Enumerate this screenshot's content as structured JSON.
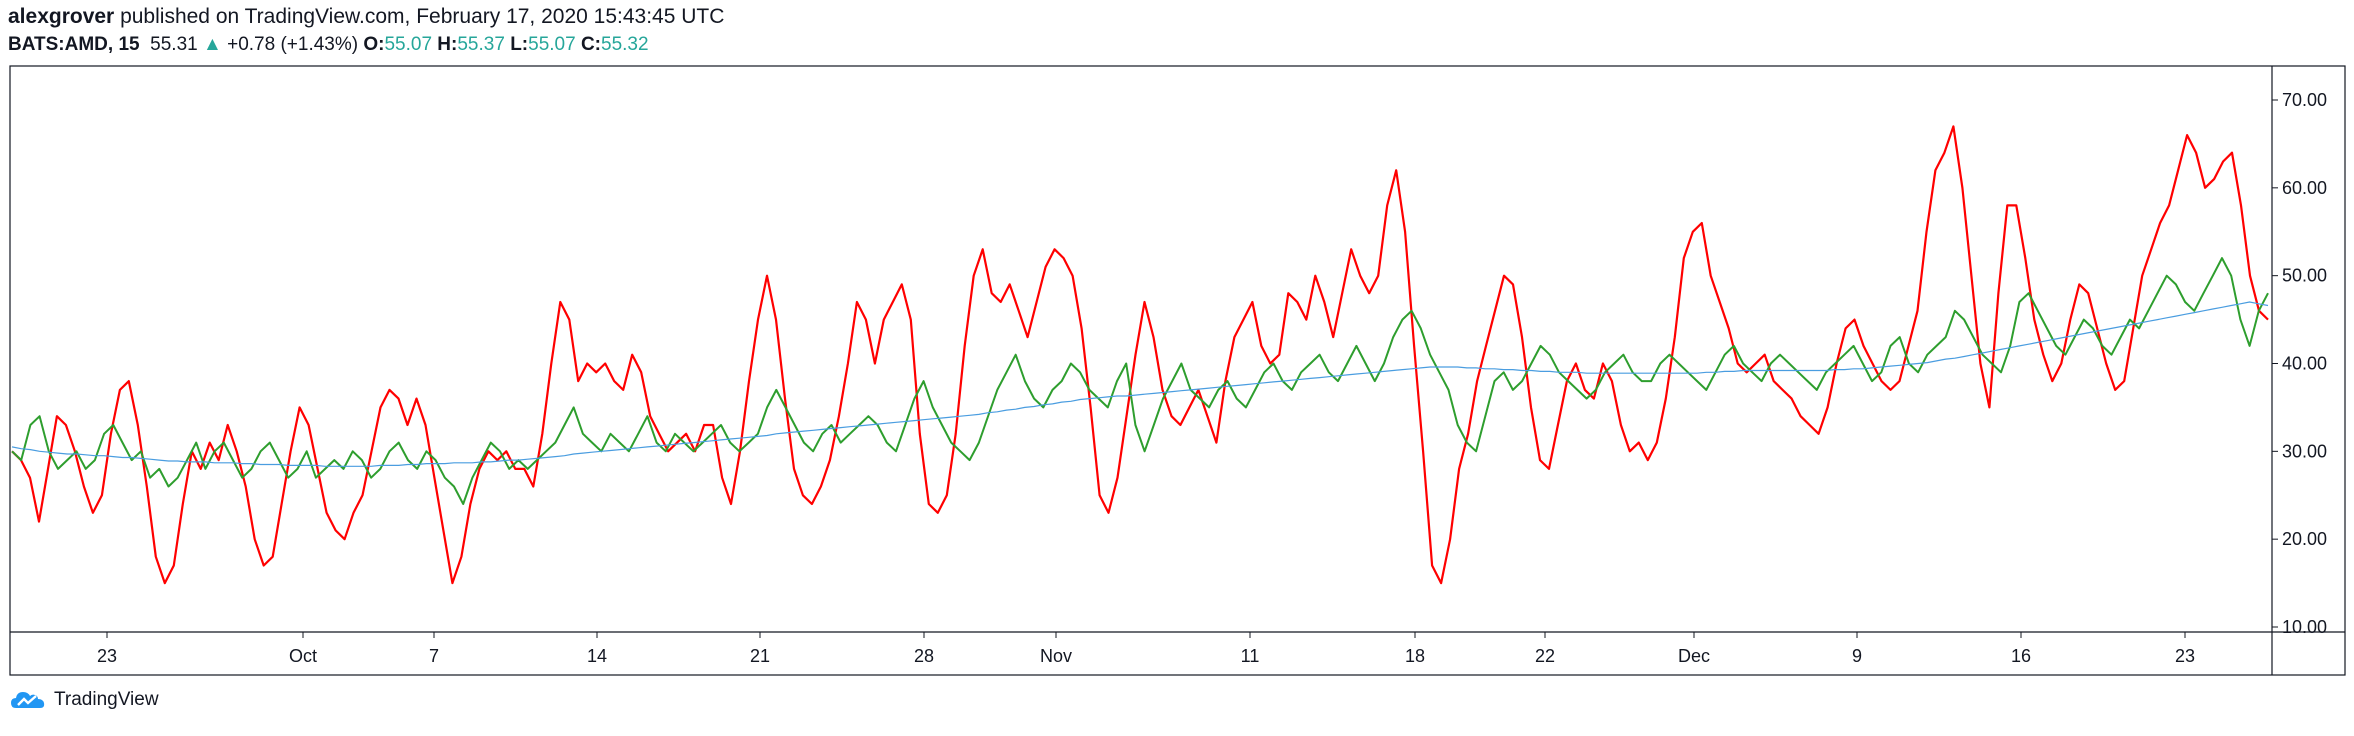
{
  "header": {
    "author": "alexgrover",
    "published": "published on TradingView.com, February 17, 2020 15:43:45 UTC",
    "symbol": "BATS:AMD, 15",
    "last": "55.31",
    "change": "+0.78 (+1.43%)",
    "o_label": "O:",
    "o_val": "55.07",
    "h_label": "H:",
    "h_val": "55.37",
    "l_label": "L:",
    "l_val": "55.07",
    "c_label": "C:",
    "c_val": "55.32"
  },
  "footer": {
    "brand": "TradingView",
    "logo_icon": "tradingview-cloud-icon"
  },
  "colors": {
    "red": "#ff0000",
    "green": "#2e9e2e",
    "blue": "#4a9de0",
    "axis": "#131722",
    "up": "#26a69a"
  },
  "chart_data": {
    "type": "line",
    "ylim": [
      10,
      70
    ],
    "yticks": [
      10,
      20,
      30,
      40,
      50,
      60,
      70
    ],
    "ytick_labels": [
      "10.00",
      "20.00",
      "30.00",
      "40.00",
      "50.00",
      "60.00",
      "70.00"
    ],
    "xticks": [
      "23",
      "Oct",
      "7",
      "14",
      "21",
      "28",
      "Nov",
      "11",
      "18",
      "22",
      "Dec",
      "9",
      "16",
      "23"
    ],
    "grid": false,
    "series": [
      {
        "color": "red",
        "width": 2.2,
        "values": [
          30,
          29,
          27,
          22,
          28,
          34,
          33,
          30,
          26,
          23,
          25,
          32,
          37,
          38,
          33,
          26,
          18,
          15,
          17,
          24,
          30,
          28,
          31,
          29,
          33,
          30,
          26,
          20,
          17,
          18,
          24,
          30,
          35,
          33,
          28,
          23,
          21,
          20,
          23,
          25,
          30,
          35,
          37,
          36,
          33,
          36,
          33,
          27,
          21,
          15,
          18,
          24,
          28,
          30,
          29,
          30,
          28,
          28,
          26,
          32,
          40,
          47,
          45,
          38,
          40,
          39,
          40,
          38,
          37,
          41,
          39,
          34,
          32,
          30,
          31,
          32,
          30,
          33,
          33,
          27,
          24,
          30,
          38,
          45,
          50,
          45,
          36,
          28,
          25,
          24,
          26,
          29,
          34,
          40,
          47,
          45,
          40,
          45,
          47,
          49,
          45,
          32,
          24,
          23,
          25,
          32,
          42,
          50,
          53,
          48,
          47,
          49,
          46,
          43,
          47,
          51,
          53,
          52,
          50,
          44,
          35,
          25,
          23,
          27,
          34,
          41,
          47,
          43,
          37,
          34,
          33,
          35,
          37,
          34,
          31,
          38,
          43,
          45,
          47,
          42,
          40,
          41,
          48,
          47,
          45,
          50,
          47,
          43,
          48,
          53,
          50,
          48,
          50,
          58,
          62,
          55,
          42,
          30,
          17,
          15,
          20,
          28,
          32,
          38,
          42,
          46,
          50,
          49,
          43,
          35,
          29,
          28,
          33,
          38,
          40,
          37,
          36,
          40,
          38,
          33,
          30,
          31,
          29,
          31,
          36,
          43,
          52,
          55,
          56,
          50,
          47,
          44,
          40,
          39,
          40,
          41,
          38,
          37,
          36,
          34,
          33,
          32,
          35,
          40,
          44,
          45,
          42,
          40,
          38,
          37,
          38,
          42,
          46,
          55,
          62,
          64,
          67,
          60,
          50,
          40,
          35,
          48,
          58,
          58,
          52,
          45,
          41,
          38,
          40,
          45,
          49,
          48,
          44,
          40,
          37,
          38,
          44,
          50,
          53,
          56,
          58,
          62,
          66,
          64,
          60,
          61,
          63,
          64,
          58,
          50,
          46,
          45
        ]
      },
      {
        "color": "green",
        "width": 2,
        "values": [
          30,
          29,
          33,
          34,
          30,
          28,
          29,
          30,
          28,
          29,
          32,
          33,
          31,
          29,
          30,
          27,
          28,
          26,
          27,
          29,
          31,
          28,
          30,
          31,
          29,
          27,
          28,
          30,
          31,
          29,
          27,
          28,
          30,
          27,
          28,
          29,
          28,
          30,
          29,
          27,
          28,
          30,
          31,
          29,
          28,
          30,
          29,
          27,
          26,
          24,
          27,
          29,
          31,
          30,
          28,
          29,
          28,
          29,
          30,
          31,
          33,
          35,
          32,
          31,
          30,
          32,
          31,
          30,
          32,
          34,
          31,
          30,
          32,
          31,
          30,
          31,
          32,
          33,
          31,
          30,
          31,
          32,
          35,
          37,
          35,
          33,
          31,
          30,
          32,
          33,
          31,
          32,
          33,
          34,
          33,
          31,
          30,
          33,
          36,
          38,
          35,
          33,
          31,
          30,
          29,
          31,
          34,
          37,
          39,
          41,
          38,
          36,
          35,
          37,
          38,
          40,
          39,
          37,
          36,
          35,
          38,
          40,
          33,
          30,
          33,
          36,
          38,
          40,
          37,
          36,
          35,
          37,
          38,
          36,
          35,
          37,
          39,
          40,
          38,
          37,
          39,
          40,
          41,
          39,
          38,
          40,
          42,
          40,
          38,
          40,
          43,
          45,
          46,
          44,
          41,
          39,
          37,
          33,
          31,
          30,
          34,
          38,
          39,
          37,
          38,
          40,
          42,
          41,
          39,
          38,
          37,
          36,
          37,
          39,
          40,
          41,
          39,
          38,
          38,
          40,
          41,
          40,
          39,
          38,
          37,
          39,
          41,
          42,
          40,
          39,
          38,
          40,
          41,
          40,
          39,
          38,
          37,
          39,
          40,
          41,
          42,
          40,
          38,
          39,
          42,
          43,
          40,
          39,
          41,
          42,
          43,
          46,
          45,
          43,
          41,
          40,
          39,
          42,
          47,
          48,
          46,
          44,
          42,
          41,
          43,
          45,
          44,
          42,
          41,
          43,
          45,
          44,
          46,
          48,
          50,
          49,
          47,
          46,
          48,
          50,
          52,
          50,
          45,
          42,
          46,
          48
        ]
      },
      {
        "color": "blue",
        "width": 1.2,
        "values": [
          30.5,
          30.3,
          30.2,
          30.0,
          29.9,
          29.8,
          29.7,
          29.7,
          29.6,
          29.5,
          29.5,
          29.4,
          29.3,
          29.3,
          29.2,
          29.1,
          29.0,
          28.9,
          28.9,
          28.8,
          28.8,
          28.8,
          28.7,
          28.7,
          28.7,
          28.6,
          28.6,
          28.5,
          28.5,
          28.5,
          28.4,
          28.4,
          28.4,
          28.4,
          28.3,
          28.3,
          28.3,
          28.3,
          28.3,
          28.3,
          28.4,
          28.4,
          28.4,
          28.5,
          28.5,
          28.6,
          28.6,
          28.6,
          28.7,
          28.7,
          28.7,
          28.8,
          28.8,
          28.9,
          29.0,
          29.0,
          29.1,
          29.2,
          29.3,
          29.4,
          29.5,
          29.7,
          29.8,
          29.9,
          30.0,
          30.1,
          30.2,
          30.3,
          30.4,
          30.5,
          30.6,
          30.7,
          30.8,
          30.9,
          31.0,
          31.1,
          31.2,
          31.3,
          31.4,
          31.5,
          31.6,
          31.7,
          31.8,
          32.0,
          32.1,
          32.2,
          32.3,
          32.4,
          32.5,
          32.6,
          32.7,
          32.8,
          32.9,
          33.0,
          33.1,
          33.2,
          33.3,
          33.4,
          33.5,
          33.6,
          33.7,
          33.8,
          33.9,
          34.0,
          34.1,
          34.2,
          34.4,
          34.5,
          34.7,
          34.8,
          35.0,
          35.1,
          35.3,
          35.4,
          35.6,
          35.7,
          35.9,
          36.0,
          36.1,
          36.2,
          36.3,
          36.3,
          36.4,
          36.5,
          36.6,
          36.7,
          36.8,
          36.9,
          37.0,
          37.1,
          37.2,
          37.3,
          37.4,
          37.5,
          37.6,
          37.7,
          37.8,
          37.9,
          38.0,
          38.1,
          38.2,
          38.3,
          38.4,
          38.5,
          38.6,
          38.7,
          38.8,
          38.9,
          39.0,
          39.1,
          39.2,
          39.3,
          39.4,
          39.5,
          39.6,
          39.6,
          39.6,
          39.6,
          39.5,
          39.5,
          39.4,
          39.4,
          39.3,
          39.3,
          39.2,
          39.2,
          39.1,
          39.1,
          39.0,
          39.0,
          39.0,
          38.9,
          38.9,
          38.9,
          38.9,
          38.9,
          38.9,
          38.9,
          38.9,
          38.9,
          38.9,
          38.9,
          38.9,
          38.9,
          39.0,
          39.0,
          39.1,
          39.1,
          39.2,
          39.2,
          39.2,
          39.2,
          39.2,
          39.2,
          39.2,
          39.2,
          39.2,
          39.2,
          39.3,
          39.3,
          39.4,
          39.4,
          39.5,
          39.6,
          39.7,
          39.8,
          39.9,
          40.0,
          40.1,
          40.3,
          40.5,
          40.6,
          40.8,
          41.0,
          41.2,
          41.4,
          41.6,
          41.8,
          42.0,
          42.2,
          42.4,
          42.6,
          42.8,
          43.0,
          43.2,
          43.4,
          43.6,
          43.8,
          44.0,
          44.2,
          44.4,
          44.6,
          44.8,
          45.0,
          45.2,
          45.4,
          45.6,
          45.8,
          46.0,
          46.2,
          46.4,
          46.6,
          46.8,
          47.0,
          46.8,
          46.6
        ]
      }
    ]
  }
}
